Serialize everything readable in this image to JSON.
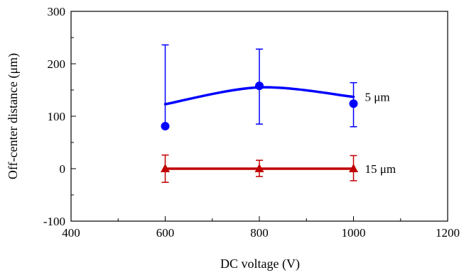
{
  "chart_data": {
    "type": "line",
    "title": "",
    "xlabel": "DC voltage  (V)",
    "ylabel": "Off-center  distance  (μm)",
    "xlim": [
      400,
      1200
    ],
    "ylim": [
      -100,
      300
    ],
    "xticks": [
      400,
      600,
      800,
      1000,
      1200
    ],
    "yticks": [
      -100,
      0,
      100,
      200,
      300
    ],
    "xtick_labels": [
      "400",
      "600",
      "800",
      "1000",
      "1200"
    ],
    "ytick_labels": [
      "-100",
      "0",
      "100",
      "200",
      "300"
    ],
    "grid": false,
    "series": [
      {
        "name": "5 μm",
        "color": "#0000ff",
        "marker": "circle",
        "x": [
          600,
          800,
          1000
        ],
        "y": [
          81,
          158,
          124
        ],
        "err_low": [
          78,
          85,
          80
        ],
        "err_high": [
          236,
          228,
          164
        ],
        "fit_curve_y": [
          123,
          155,
          137
        ]
      },
      {
        "name": "15 μm",
        "color": "#c00000",
        "marker": "triangle",
        "x": [
          600,
          800,
          1000
        ],
        "y": [
          0,
          0,
          0
        ],
        "err_low": [
          -26,
          -15,
          -23
        ],
        "err_high": [
          26,
          16,
          25
        ],
        "fit_curve_y": [
          0,
          0,
          0
        ]
      }
    ]
  }
}
